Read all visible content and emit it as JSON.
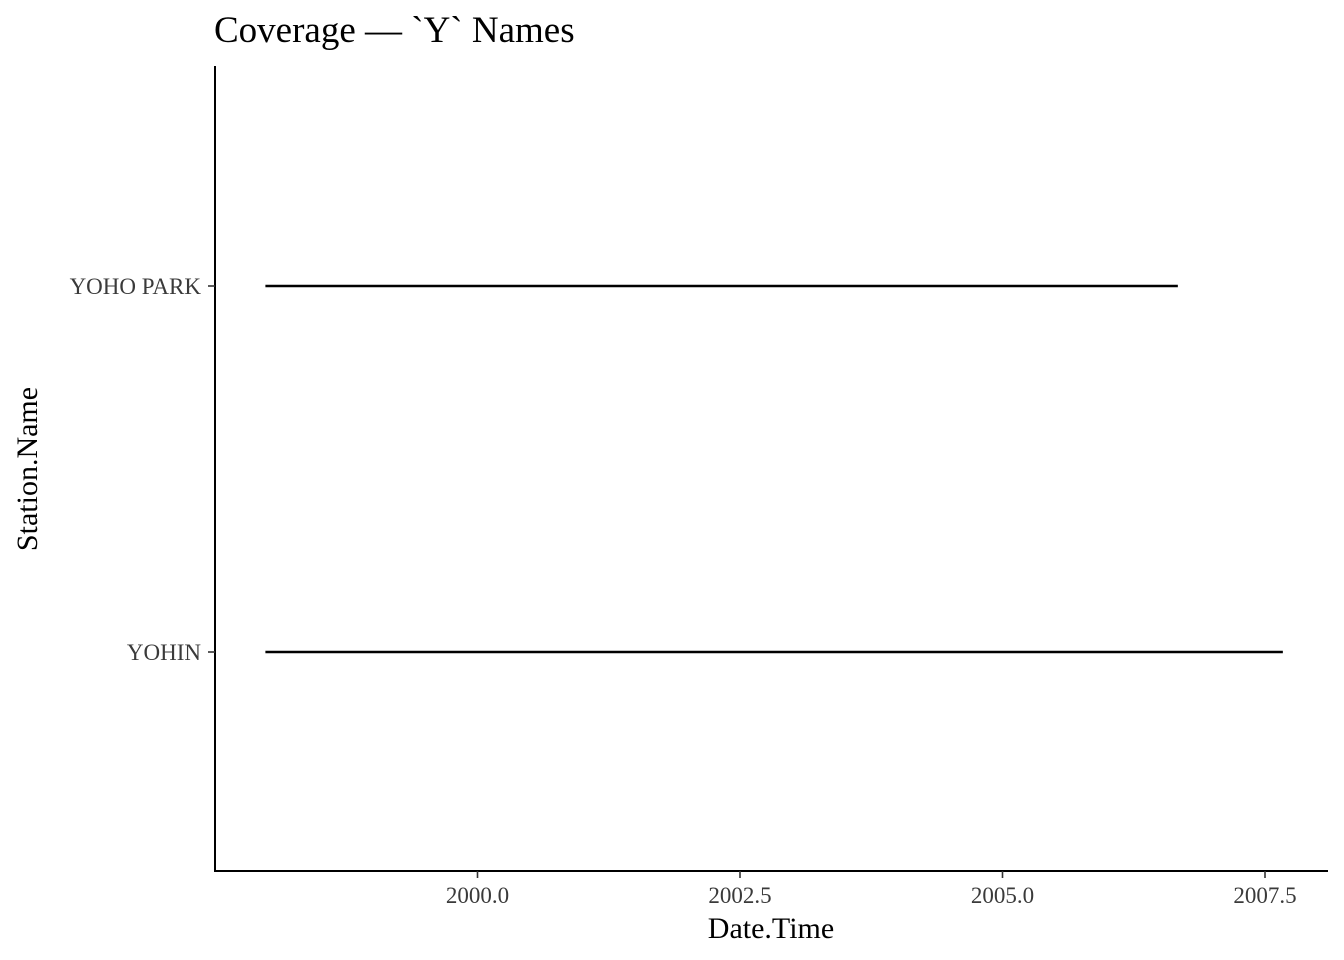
{
  "chart_data": {
    "type": "line",
    "title": "Coverage — `Y` Names",
    "xlabel": "Date.Time",
    "ylabel": "Station.Name",
    "x_ticks": [
      2000.0,
      2002.5,
      2005.0,
      2007.5
    ],
    "x_tick_labels": [
      "2000.0",
      "2002.5",
      "2005.0",
      "2007.5"
    ],
    "xlim": [
      1997.5,
      2008.1
    ],
    "categories": [
      "YOHO PARK",
      "YOHIN"
    ],
    "segments": [
      {
        "station": "YOHO PARK",
        "start": 1997.98,
        "end": 2006.67
      },
      {
        "station": "YOHIN",
        "start": 1997.98,
        "end": 2007.67
      }
    ],
    "grid": false,
    "legend": "none"
  }
}
